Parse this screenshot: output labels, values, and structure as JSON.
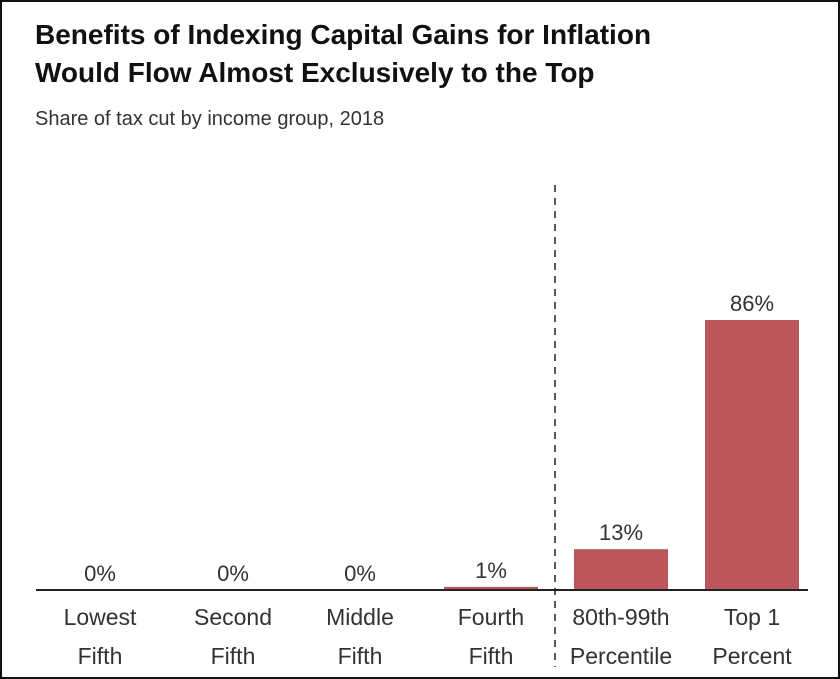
{
  "title_line1": "Benefits of Indexing Capital Gains for Inflation",
  "title_line2": "Would Flow Almost Exclusively to the Top",
  "subtitle": "Share of tax cut by income group, 2018",
  "colors": {
    "bar": "#bd565a",
    "axis": "#222222",
    "text": "#333333"
  },
  "chart_data": {
    "type": "bar",
    "title": "Benefits of Indexing Capital Gains for Inflation Would Flow Almost Exclusively to the Top",
    "subtitle": "Share of tax cut by income group, 2018",
    "categories": [
      [
        "Lowest",
        "Fifth"
      ],
      [
        "Second",
        "Fifth"
      ],
      [
        "Middle",
        "Fifth"
      ],
      [
        "Fourth",
        "Fifth"
      ],
      [
        "80th-99th",
        "Percentile"
      ],
      [
        "Top 1",
        "Percent"
      ]
    ],
    "values": [
      0,
      0,
      0,
      1,
      13,
      86
    ],
    "data_labels": [
      "0%",
      "0%",
      "0%",
      "1%",
      "13%",
      "86%"
    ],
    "ylim": [
      0,
      100
    ],
    "grid": false,
    "legend": "none",
    "divider_between": [
      3,
      4
    ],
    "divider_style": "dashed"
  }
}
